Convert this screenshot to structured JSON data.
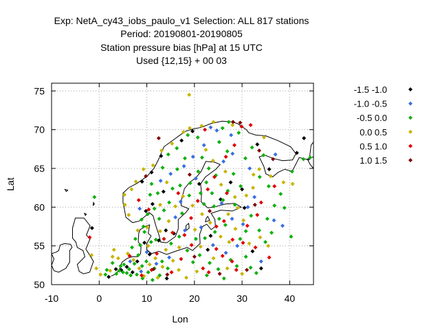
{
  "chart_data": {
    "type": "scatter",
    "title_lines": [
      "Exp: NetA_cy43_iobs_paulo_v1   Selection: ALL    817 stations",
      "Period: 20190801-20190805",
      "Station pressure bias [hPa] at  15 UTC",
      "Used {12,15} + 00 03"
    ],
    "xlabel": "Lon",
    "ylabel": "Lat",
    "xlim": [
      -10,
      45
    ],
    "ylim": [
      50,
      76
    ],
    "xticks": [
      "-10",
      "0",
      "10",
      "20",
      "30",
      "40"
    ],
    "yticks": [
      "50",
      "55",
      "60",
      "65",
      "70",
      "75"
    ],
    "grid": true,
    "legend_position": "right",
    "series": [
      {
        "name": "-1.5 -1.0",
        "color": "#000000",
        "points": [
          [
            -1.5,
            57.3
          ],
          [
            2.0,
            51.0
          ],
          [
            3.5,
            52.0
          ],
          [
            4.6,
            51.9
          ],
          [
            5.8,
            52.3
          ],
          [
            7.0,
            51.6
          ],
          [
            8.0,
            53.0
          ],
          [
            9.5,
            55.4
          ],
          [
            10.6,
            53.9
          ],
          [
            12.5,
            55.7
          ],
          [
            14.2,
            50.8
          ],
          [
            11.2,
            60.4
          ],
          [
            13.5,
            62.0
          ],
          [
            13.0,
            66.6
          ],
          [
            17.3,
            68.6
          ],
          [
            19.6,
            69.8
          ],
          [
            21.0,
            63.0
          ],
          [
            25.5,
            61.0
          ],
          [
            27.6,
            63.2
          ],
          [
            30.0,
            62.3
          ],
          [
            33.2,
            68.1
          ],
          [
            34.0,
            52.1
          ],
          [
            35.7,
            64.9
          ],
          [
            41.5,
            67.0
          ],
          [
            43.0,
            68.9
          ],
          [
            9.0,
            63.3
          ],
          [
            9.8,
            59.5
          ],
          [
            11.0,
            64.5
          ],
          [
            14.0,
            57.0
          ],
          [
            15.7,
            56.6
          ],
          [
            23.4,
            56.3
          ],
          [
            22.8,
            54.5
          ],
          [
            32.2,
            54.3
          ],
          [
            30.5,
            59.9
          ]
        ]
      },
      {
        "name": "-1.0 -0.5",
        "color": "#3a6fe0",
        "points": [
          [
            6.5,
            53.0
          ],
          [
            8.8,
            51.7
          ],
          [
            10.0,
            54.2
          ],
          [
            12.0,
            52.7
          ],
          [
            14.7,
            53.5
          ],
          [
            16.0,
            58.7
          ],
          [
            18.0,
            57.0
          ],
          [
            17.1,
            60.7
          ],
          [
            15.0,
            64.3
          ],
          [
            17.8,
            65.3
          ],
          [
            20.3,
            63.7
          ],
          [
            22.0,
            68.0
          ],
          [
            23.4,
            70.3
          ],
          [
            24.7,
            69.9
          ],
          [
            26.1,
            65.9
          ],
          [
            28.0,
            66.9
          ],
          [
            25.7,
            60.5
          ],
          [
            27.9,
            58.5
          ],
          [
            31.2,
            60.0
          ],
          [
            29.0,
            55.0
          ],
          [
            34.0,
            53.0
          ],
          [
            36.7,
            58.3
          ],
          [
            31.6,
            65.0
          ],
          [
            37.0,
            66.8
          ],
          [
            38.5,
            57.6
          ],
          [
            30.2,
            57.8
          ],
          [
            21.4,
            57.4
          ],
          [
            23.9,
            55.1
          ],
          [
            26.6,
            54.1
          ],
          [
            8.5,
            59.8
          ],
          [
            12.9,
            63.4
          ],
          [
            19.7,
            66.5
          ],
          [
            27.7,
            69.3
          ],
          [
            32.6,
            61.3
          ]
        ]
      },
      {
        "name": "-0.5 0.0",
        "color": "#10b010",
        "points": [
          [
            3.6,
            51.4
          ],
          [
            4.2,
            51.8
          ],
          [
            5.0,
            51.6
          ],
          [
            5.8,
            51.5
          ],
          [
            4.5,
            52.4
          ],
          [
            5.2,
            52.6
          ],
          [
            6.3,
            52.0
          ],
          [
            6.6,
            51.2
          ],
          [
            7.4,
            52.7
          ],
          [
            8.2,
            53.8
          ],
          [
            7.9,
            51.3
          ],
          [
            9.0,
            52.4
          ],
          [
            9.9,
            53.0
          ],
          [
            10.3,
            51.6
          ],
          [
            11.6,
            52.1
          ],
          [
            12.7,
            51.2
          ],
          [
            13.2,
            53.0
          ],
          [
            14.4,
            52.1
          ],
          [
            8.6,
            55.1
          ],
          [
            9.5,
            56.8
          ],
          [
            10.9,
            55.5
          ],
          [
            11.9,
            55.8
          ],
          [
            9.3,
            57.5
          ],
          [
            8.9,
            58.4
          ],
          [
            10.2,
            59.1
          ],
          [
            11.6,
            59.8
          ],
          [
            12.6,
            58.5
          ],
          [
            13.6,
            59.6
          ],
          [
            14.7,
            60.6
          ],
          [
            15.4,
            62.4
          ],
          [
            12.3,
            61.8
          ],
          [
            10.7,
            61.6
          ],
          [
            11.0,
            63.0
          ],
          [
            13.3,
            65.1
          ],
          [
            14.5,
            66.8
          ],
          [
            16.3,
            67.6
          ],
          [
            18.6,
            69.3
          ],
          [
            20.7,
            69.0
          ],
          [
            21.6,
            66.4
          ],
          [
            20.8,
            64.6
          ],
          [
            22.5,
            63.2
          ],
          [
            23.7,
            61.8
          ],
          [
            24.5,
            64.1
          ],
          [
            26.9,
            67.2
          ],
          [
            25.2,
            68.4
          ],
          [
            29.3,
            69.6
          ],
          [
            30.7,
            66.3
          ],
          [
            28.2,
            64.3
          ],
          [
            29.7,
            62.7
          ],
          [
            27.0,
            62.1
          ],
          [
            24.1,
            60.1
          ],
          [
            25.2,
            58.5
          ],
          [
            26.5,
            57.7
          ],
          [
            24.3,
            56.8
          ],
          [
            22.2,
            56.0
          ],
          [
            20.3,
            55.9
          ],
          [
            21.1,
            53.8
          ],
          [
            23.2,
            52.8
          ],
          [
            25.0,
            52.0
          ],
          [
            27.6,
            53.2
          ],
          [
            28.9,
            52.4
          ],
          [
            30.8,
            53.6
          ],
          [
            31.8,
            52.2
          ],
          [
            33.0,
            51.5
          ],
          [
            34.9,
            55.5
          ],
          [
            36.2,
            56.7
          ],
          [
            33.6,
            57.0
          ],
          [
            35.3,
            58.5
          ],
          [
            36.8,
            60.2
          ],
          [
            38.1,
            61.7
          ],
          [
            35.6,
            62.7
          ],
          [
            33.7,
            63.9
          ],
          [
            34.5,
            66.7
          ],
          [
            32.1,
            67.7
          ],
          [
            40.5,
            64.6
          ],
          [
            42.9,
            66.2
          ],
          [
            44.3,
            66.4
          ],
          [
            38.9,
            59.9
          ],
          [
            40.3,
            56.2
          ],
          [
            17.4,
            59.2
          ],
          [
            18.9,
            61.5
          ],
          [
            17.0,
            62.8
          ],
          [
            19.1,
            63.1
          ],
          [
            16.4,
            64.9
          ],
          [
            18.0,
            66.3
          ],
          [
            1.6,
            51.9
          ],
          [
            2.8,
            52.8
          ],
          [
            6.9,
            54.8
          ],
          [
            7.6,
            55.9
          ],
          [
            15.1,
            55.3
          ],
          [
            16.8,
            56.2
          ],
          [
            18.5,
            54.4
          ],
          [
            19.7,
            52.9
          ],
          [
            22.6,
            51.2
          ],
          [
            26.2,
            50.8
          ],
          [
            29.6,
            55.9
          ],
          [
            30.8,
            56.9
          ],
          [
            31.9,
            58.9
          ],
          [
            28.5,
            60.3
          ],
          [
            26.0,
            60.9
          ],
          [
            22.0,
            60.4
          ],
          [
            21.3,
            61.8
          ],
          [
            23.0,
            65.0
          ],
          [
            25.9,
            70.2
          ],
          [
            27.2,
            71.0
          ],
          [
            -1.0,
            61.3
          ],
          [
            1.3,
            51.3
          ],
          [
            11.2,
            50.6
          ],
          [
            9.1,
            50.8
          ]
        ]
      },
      {
        "name": "0.0 0.5",
        "color": "#c8b400",
        "points": [
          [
            -1.6,
            53.8
          ],
          [
            -0.6,
            52.1
          ],
          [
            0.3,
            51.3
          ],
          [
            2.3,
            51.8
          ],
          [
            6.0,
            54.0
          ],
          [
            7.2,
            53.2
          ],
          [
            8.4,
            52.1
          ],
          [
            9.4,
            51.1
          ],
          [
            10.6,
            52.6
          ],
          [
            11.8,
            53.4
          ],
          [
            13.3,
            52.3
          ],
          [
            14.0,
            54.5
          ],
          [
            15.5,
            53.1
          ],
          [
            16.7,
            51.9
          ],
          [
            18.3,
            50.9
          ],
          [
            8.1,
            57.0
          ],
          [
            10.1,
            57.4
          ],
          [
            12.8,
            56.9
          ],
          [
            14.6,
            58.2
          ],
          [
            16.0,
            60.1
          ],
          [
            17.6,
            61.4
          ],
          [
            19.6,
            60.2
          ],
          [
            21.6,
            59.1
          ],
          [
            23.3,
            58.0
          ],
          [
            25.5,
            56.2
          ],
          [
            27.3,
            55.5
          ],
          [
            28.6,
            57.2
          ],
          [
            30.3,
            58.3
          ],
          [
            29.1,
            59.9
          ],
          [
            30.9,
            61.5
          ],
          [
            32.3,
            62.5
          ],
          [
            33.6,
            64.9
          ],
          [
            36.0,
            64.0
          ],
          [
            38.7,
            63.2
          ],
          [
            40.6,
            63.0
          ],
          [
            18.9,
            74.5
          ],
          [
            6.2,
            59.0
          ],
          [
            5.4,
            60.3
          ],
          [
            5.3,
            61.6
          ],
          [
            6.8,
            62.3
          ],
          [
            7.7,
            63.3
          ],
          [
            9.3,
            64.9
          ],
          [
            11.3,
            65.4
          ],
          [
            13.1,
            67.3
          ],
          [
            15.3,
            68.2
          ],
          [
            17.7,
            69.7
          ],
          [
            19.0,
            70.2
          ],
          [
            21.5,
            70.5
          ],
          [
            24.0,
            71.0
          ],
          [
            22.4,
            67.4
          ],
          [
            23.9,
            66.0
          ],
          [
            26.5,
            64.6
          ],
          [
            25.6,
            62.9
          ],
          [
            28.5,
            61.3
          ],
          [
            20.1,
            57.1
          ],
          [
            21.3,
            54.9
          ],
          [
            24.0,
            53.4
          ],
          [
            26.9,
            52.1
          ],
          [
            30.0,
            51.4
          ],
          [
            31.5,
            55.3
          ],
          [
            33.8,
            56.1
          ],
          [
            35.5,
            55.0
          ],
          [
            27.1,
            59.1
          ],
          [
            32.4,
            64.2
          ],
          [
            14.2,
            63.2
          ],
          [
            12.8,
            60.3
          ],
          [
            4.0,
            53.4
          ],
          [
            2.8,
            53.6
          ],
          [
            10.3,
            55.0
          ],
          [
            12.3,
            50.9
          ],
          [
            3.1,
            54.5
          ],
          [
            16.8,
            54.8
          ],
          [
            28.0,
            70.6
          ],
          [
            34.6,
            69.0
          ],
          [
            20.5,
            51.7
          ]
        ]
      },
      {
        "name": "0.5 1.0",
        "color": "#e00000",
        "points": [
          [
            -2.0,
            56.1
          ],
          [
            8.9,
            51.2
          ],
          [
            11.0,
            51.9
          ],
          [
            12.1,
            54.0
          ],
          [
            15.2,
            51.6
          ],
          [
            17.2,
            53.3
          ],
          [
            19.4,
            55.1
          ],
          [
            21.8,
            52.1
          ],
          [
            24.6,
            54.6
          ],
          [
            25.9,
            53.7
          ],
          [
            28.0,
            55.8
          ],
          [
            28.8,
            51.9
          ],
          [
            32.8,
            54.8
          ],
          [
            30.2,
            55.4
          ],
          [
            26.2,
            58.2
          ],
          [
            24.6,
            57.5
          ],
          [
            19.3,
            58.6
          ],
          [
            16.6,
            61.8
          ],
          [
            15.4,
            56.7
          ],
          [
            22.8,
            62.3
          ],
          [
            24.2,
            63.9
          ],
          [
            26.6,
            66.5
          ],
          [
            28.4,
            68.0
          ],
          [
            22.2,
            70.0
          ],
          [
            29.9,
            70.4
          ],
          [
            31.8,
            70.6
          ],
          [
            36.8,
            62.7
          ],
          [
            34.0,
            60.6
          ],
          [
            31.1,
            57.6
          ],
          [
            33.2,
            59.0
          ],
          [
            35.7,
            53.5
          ],
          [
            10.4,
            59.7
          ],
          [
            8.3,
            60.9
          ],
          [
            6.4,
            53.7
          ],
          [
            13.6,
            55.9
          ],
          [
            17.9,
            56.4
          ],
          [
            20.7,
            60.8
          ],
          [
            26.8,
            61.8
          ],
          [
            27.9,
            53.0
          ],
          [
            23.0,
            51.6
          ]
        ]
      },
      {
        "name": "1.0 1.5",
        "color": "#800000",
        "points": [
          [
            11.4,
            52.0
          ],
          [
            14.3,
            51.3
          ],
          [
            25.3,
            51.4
          ],
          [
            31.0,
            51.9
          ],
          [
            28.1,
            71.0
          ],
          [
            29.6,
            70.9
          ],
          [
            33.6,
            67.3
          ],
          [
            36.5,
            66.2
          ],
          [
            9.8,
            64.0
          ],
          [
            12.5,
            68.9
          ],
          [
            19.0,
            64.2
          ],
          [
            23.2,
            59.5
          ],
          [
            20.0,
            53.6
          ],
          [
            32.7,
            60.3
          ]
        ]
      }
    ]
  }
}
